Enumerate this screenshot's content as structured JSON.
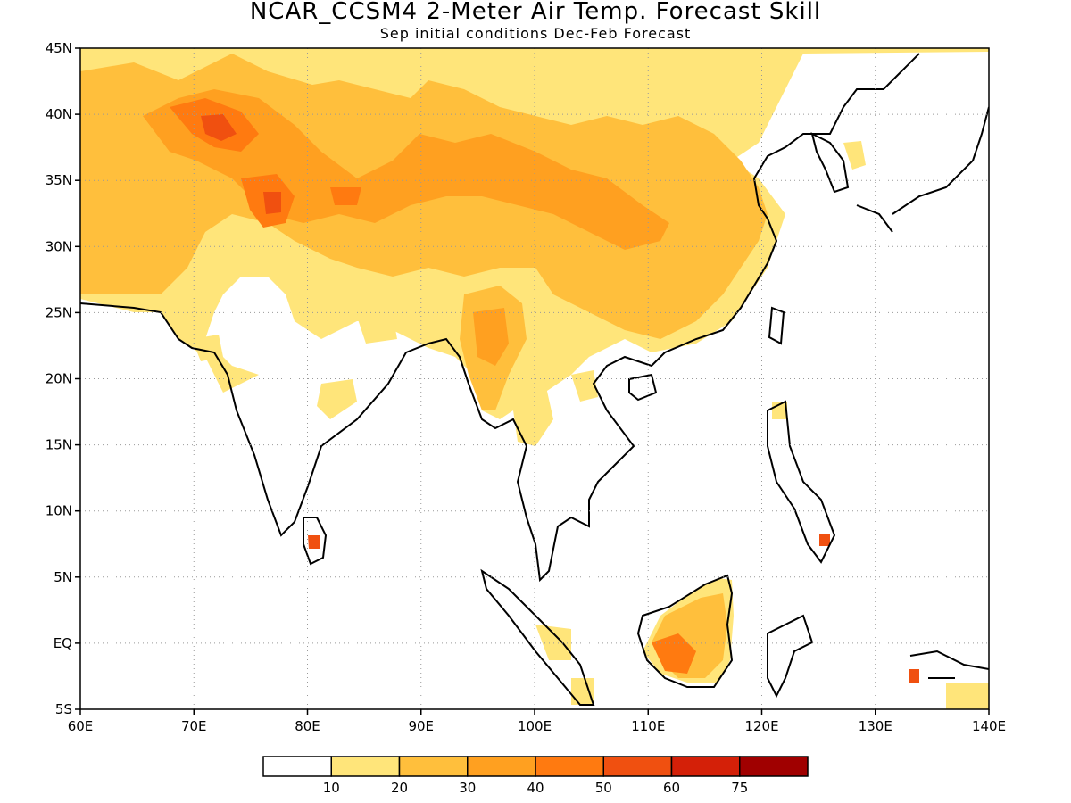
{
  "header": {
    "title": "NCAR_CCSM4 2-Meter Air Temp. Forecast Skill",
    "subtitle": "Sep initial conditions  Dec-Feb Forecast"
  },
  "map": {
    "lon_range": [
      60,
      140
    ],
    "lat_range": [
      -5,
      45
    ],
    "lon_ticks": [
      "60E",
      "70E",
      "80E",
      "90E",
      "100E",
      "110E",
      "120E",
      "130E",
      "140E"
    ],
    "lat_ticks": [
      "5S",
      "EQ",
      "5N",
      "10N",
      "15N",
      "20N",
      "25N",
      "30N",
      "35N",
      "40N",
      "45N"
    ],
    "gridlines": "dotted",
    "coastline_color": "#000000"
  },
  "colorbar": {
    "colors": [
      "#ffffff",
      "#ffe57a",
      "#ffbf3c",
      "#ffa020",
      "#ff7a10",
      "#f05010",
      "#d42008",
      "#a00000"
    ],
    "labels": [
      "10",
      "20",
      "30",
      "40",
      "50",
      "60",
      "75"
    ]
  }
}
